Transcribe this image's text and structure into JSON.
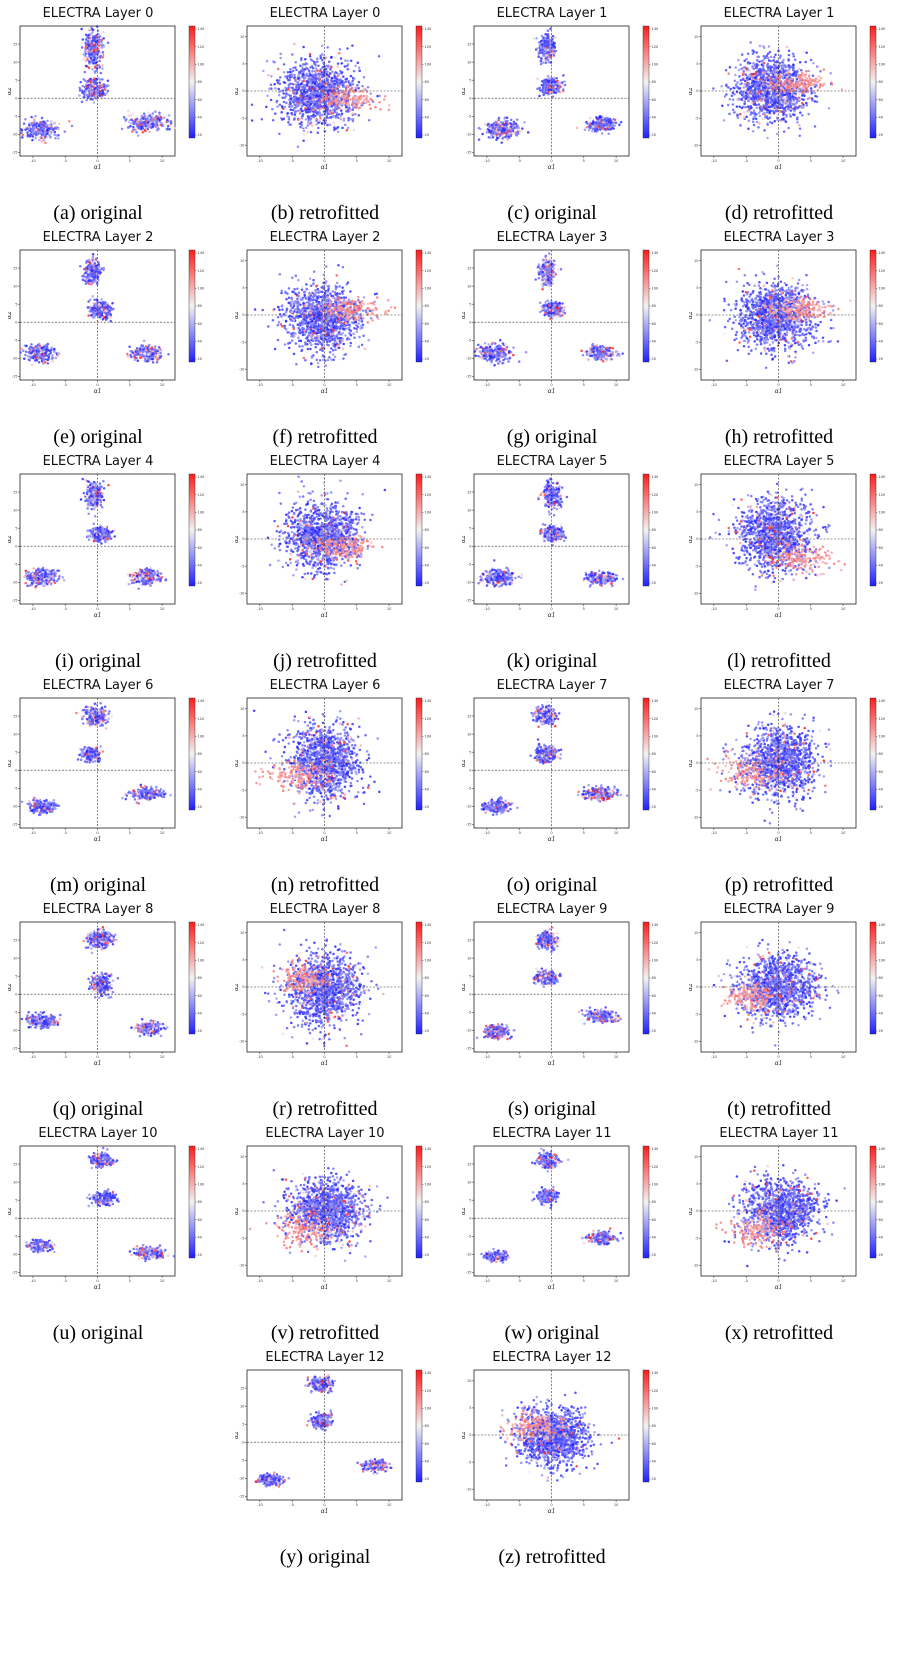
{
  "figure": {
    "cmap": {
      "low": "#1f1fff",
      "mid": "#f2f2f2",
      "high": "#ff1c1c"
    },
    "colorbar_ticks": [
      "140",
      "120",
      "100",
      "80",
      "60",
      "40",
      "20"
    ],
    "xlabel": "α1",
    "ylabel": "α2"
  },
  "chart_data": [
    {
      "id": "a",
      "caption": "(a) original",
      "title": "ELECTRA Layer 0",
      "type": "scatter",
      "variant": "original",
      "xlim": [
        -12,
        12
      ],
      "ylim": [
        -16,
        20
      ],
      "x_ticks": [
        "-10",
        "-5",
        "0",
        "5",
        "10"
      ],
      "y_ticks": [
        "-15",
        "-10",
        "-5",
        "0",
        "5",
        "10",
        "15"
      ],
      "clusters": [
        [
          -0.6,
          13.5,
          0.7,
          2.8,
          0.25
        ],
        [
          -0.6,
          2.4,
          0.9,
          1.4,
          0.22
        ],
        [
          -8.8,
          -8.5,
          1.3,
          1.3,
          0.25
        ],
        [
          7.7,
          -6.7,
          1.6,
          1.2,
          0.3
        ]
      ]
    },
    {
      "id": "b",
      "caption": "(b) retrofitted",
      "title": "ELECTRA Layer 0",
      "type": "scatter",
      "variant": "retrofitted",
      "xlim": [
        -12,
        12
      ],
      "ylim": [
        -12,
        12
      ],
      "x_ticks": [
        "-10",
        "-5",
        "0",
        "5",
        "10"
      ],
      "y_ticks": [
        "-10",
        "-5",
        "0",
        "5",
        "10"
      ],
      "cloud": [
        -1.0,
        -0.5,
        3.0,
        3.0
      ],
      "tail": [
        3.5,
        -1.5,
        2.6,
        1.1
      ]
    },
    {
      "id": "c",
      "caption": "(c) original",
      "title": "ELECTRA Layer 1",
      "type": "scatter",
      "variant": "original",
      "xlim": [
        -12,
        12
      ],
      "ylim": [
        -16,
        20
      ],
      "x_ticks": [
        "-10",
        "-5",
        "0",
        "5",
        "10"
      ],
      "y_ticks": [
        "-15",
        "-10",
        "-5",
        "0",
        "5",
        "10",
        "15"
      ],
      "clusters": [
        [
          -0.7,
          14.0,
          0.6,
          1.8,
          0.25
        ],
        [
          -0.2,
          3.5,
          0.8,
          1.1,
          0.2
        ],
        [
          -7.6,
          -8.5,
          1.4,
          1.3,
          0.25
        ],
        [
          7.8,
          -7.3,
          1.0,
          0.9,
          0.3
        ]
      ]
    },
    {
      "id": "d",
      "caption": "(d) retrofitted",
      "title": "ELECTRA Layer 1",
      "type": "scatter",
      "variant": "retrofitted",
      "xlim": [
        -12,
        12
      ],
      "ylim": [
        -12,
        12
      ],
      "x_ticks": [
        "-10",
        "-5",
        "0",
        "5",
        "10"
      ],
      "y_ticks": [
        "-10",
        "-5",
        "0",
        "5",
        "10"
      ],
      "cloud": [
        -1.0,
        0.5,
        2.8,
        2.8
      ],
      "tail": [
        3.0,
        1.5,
        2.4,
        1.0
      ]
    },
    {
      "id": "e",
      "caption": "(e) original",
      "title": "ELECTRA Layer 2",
      "type": "scatter",
      "variant": "original",
      "xlim": [
        -12,
        12
      ],
      "ylim": [
        -16,
        20
      ],
      "x_ticks": [
        "-10",
        "-5",
        "0",
        "5",
        "10"
      ],
      "y_ticks": [
        "-15",
        "-10",
        "-5",
        "0",
        "5",
        "10",
        "15"
      ],
      "clusters": [
        [
          -0.8,
          14.0,
          0.6,
          1.7,
          0.25
        ],
        [
          0.4,
          3.5,
          0.9,
          1.2,
          0.2
        ],
        [
          -9.0,
          -8.5,
          1.2,
          1.1,
          0.25
        ],
        [
          7.6,
          -8.5,
          1.1,
          1.0,
          0.3
        ]
      ]
    },
    {
      "id": "f",
      "caption": "(f) retrofitted",
      "title": "ELECTRA Layer 2",
      "type": "scatter",
      "variant": "retrofitted",
      "xlim": [
        -12,
        12
      ],
      "ylim": [
        -12,
        12
      ],
      "x_ticks": [
        "-10",
        "-5",
        "0",
        "5",
        "10"
      ],
      "y_ticks": [
        "-10",
        "-5",
        "0",
        "5",
        "10"
      ],
      "cloud": [
        -0.3,
        -0.6,
        2.9,
        2.9
      ],
      "tail": [
        4.0,
        1.0,
        2.6,
        1.0
      ]
    },
    {
      "id": "g",
      "caption": "(g) original",
      "title": "ELECTRA Layer 3",
      "type": "scatter",
      "variant": "original",
      "xlim": [
        -12,
        12
      ],
      "ylim": [
        -16,
        20
      ],
      "x_ticks": [
        "-10",
        "-5",
        "0",
        "5",
        "10"
      ],
      "y_ticks": [
        "-15",
        "-10",
        "-5",
        "0",
        "5",
        "10",
        "15"
      ],
      "clusters": [
        [
          -0.7,
          14.0,
          0.6,
          1.7,
          0.25
        ],
        [
          0.3,
          3.5,
          0.8,
          1.0,
          0.2
        ],
        [
          -8.8,
          -8.5,
          1.2,
          1.1,
          0.25
        ],
        [
          7.5,
          -8.5,
          1.1,
          0.9,
          0.3
        ]
      ]
    },
    {
      "id": "h",
      "caption": "(h) retrofitted",
      "title": "ELECTRA Layer 3",
      "type": "scatter",
      "variant": "retrofitted",
      "xlim": [
        -12,
        12
      ],
      "ylim": [
        -12,
        12
      ],
      "x_ticks": [
        "-10",
        "-5",
        "0",
        "5",
        "10"
      ],
      "y_ticks": [
        "-10",
        "-5",
        "0",
        "5",
        "10"
      ],
      "cloud": [
        -0.5,
        -0.3,
        3.0,
        3.0
      ],
      "tail": [
        3.5,
        1.0,
        2.4,
        1.0
      ]
    },
    {
      "id": "i",
      "caption": "(i) original",
      "title": "ELECTRA Layer 4",
      "type": "scatter",
      "variant": "original",
      "xlim": [
        -12,
        12
      ],
      "ylim": [
        -16,
        20
      ],
      "x_ticks": [
        "-10",
        "-5",
        "0",
        "5",
        "10"
      ],
      "y_ticks": [
        "-15",
        "-10",
        "-5",
        "0",
        "5",
        "10",
        "15"
      ],
      "clusters": [
        [
          -0.5,
          14.0,
          0.7,
          1.8,
          0.25
        ],
        [
          0.5,
          3.5,
          0.8,
          1.0,
          0.2
        ],
        [
          -8.7,
          -8.5,
          1.3,
          1.1,
          0.25
        ],
        [
          7.5,
          -8.5,
          1.1,
          1.0,
          0.3
        ]
      ]
    },
    {
      "id": "j",
      "caption": "(j) retrofitted",
      "title": "ELECTRA Layer 4",
      "type": "scatter",
      "variant": "retrofitted",
      "xlim": [
        -12,
        12
      ],
      "ylim": [
        -12,
        12
      ],
      "x_ticks": [
        "-10",
        "-5",
        "0",
        "5",
        "10"
      ],
      "y_ticks": [
        "-10",
        "-5",
        "0",
        "5",
        "10"
      ],
      "cloud": [
        -0.3,
        0.5,
        2.8,
        3.0
      ],
      "tail": [
        3.5,
        -1.5,
        2.5,
        0.9
      ]
    },
    {
      "id": "k",
      "caption": "(k) original",
      "title": "ELECTRA Layer 5",
      "type": "scatter",
      "variant": "original",
      "xlim": [
        -12,
        12
      ],
      "ylim": [
        -16,
        20
      ],
      "x_ticks": [
        "-10",
        "-5",
        "0",
        "5",
        "10"
      ],
      "y_ticks": [
        "-15",
        "-10",
        "-5",
        "0",
        "5",
        "10",
        "15"
      ],
      "clusters": [
        [
          0.2,
          14.0,
          0.7,
          1.7,
          0.25
        ],
        [
          0.3,
          3.5,
          0.8,
          1.0,
          0.2
        ],
        [
          -8.2,
          -8.5,
          1.2,
          1.0,
          0.25
        ],
        [
          7.5,
          -9.0,
          1.1,
          0.8,
          0.3
        ]
      ]
    },
    {
      "id": "l",
      "caption": "(l) retrofitted",
      "title": "ELECTRA Layer 5",
      "type": "scatter",
      "variant": "retrofitted",
      "xlim": [
        -12,
        12
      ],
      "ylim": [
        -12,
        12
      ],
      "x_ticks": [
        "-10",
        "-5",
        "0",
        "5",
        "10"
      ],
      "y_ticks": [
        "-10",
        "-5",
        "0",
        "5",
        "10"
      ],
      "cloud": [
        -0.5,
        0.5,
        2.8,
        3.2
      ],
      "tail": [
        4.0,
        -3.5,
        2.3,
        1.3
      ]
    },
    {
      "id": "m",
      "caption": "(m) original",
      "title": "ELECTRA Layer 6",
      "type": "scatter",
      "variant": "original",
      "xlim": [
        -12,
        12
      ],
      "ylim": [
        -16,
        20
      ],
      "x_ticks": [
        "-10",
        "-5",
        "0",
        "5",
        "10"
      ],
      "y_ticks": [
        "-15",
        "-10",
        "-5",
        "0",
        "5",
        "10",
        "15"
      ],
      "clusters": [
        [
          -0.3,
          15.0,
          0.9,
          1.3,
          0.25
        ],
        [
          -1.0,
          4.5,
          0.7,
          0.9,
          0.2
        ],
        [
          -8.5,
          -10.0,
          1.1,
          0.9,
          0.25
        ],
        [
          7.4,
          -6.5,
          1.2,
          0.8,
          0.3
        ]
      ]
    },
    {
      "id": "n",
      "caption": "(n) retrofitted",
      "title": "ELECTRA Layer 6",
      "type": "scatter",
      "variant": "retrofitted",
      "xlim": [
        -12,
        12
      ],
      "ylim": [
        -12,
        12
      ],
      "x_ticks": [
        "-10",
        "-5",
        "0",
        "5",
        "10"
      ],
      "y_ticks": [
        "-10",
        "-5",
        "0",
        "5",
        "10"
      ],
      "cloud": [
        0.0,
        0.3,
        2.6,
        3.3
      ],
      "tail": [
        -4.5,
        -2.5,
        2.4,
        1.3
      ]
    },
    {
      "id": "o",
      "caption": "(o) original",
      "title": "ELECTRA Layer 7",
      "type": "scatter",
      "variant": "original",
      "xlim": [
        -12,
        12
      ],
      "ylim": [
        -16,
        20
      ],
      "x_ticks": [
        "-10",
        "-5",
        "0",
        "5",
        "10"
      ],
      "y_ticks": [
        "-15",
        "-10",
        "-5",
        "0",
        "5",
        "10",
        "15"
      ],
      "clusters": [
        [
          -0.9,
          15.0,
          0.8,
          1.2,
          0.25
        ],
        [
          -0.9,
          4.5,
          0.8,
          1.0,
          0.2
        ],
        [
          -8.5,
          -10.0,
          1.0,
          0.9,
          0.25
        ],
        [
          7.5,
          -6.5,
          1.2,
          0.8,
          0.3
        ]
      ]
    },
    {
      "id": "p",
      "caption": "(p) retrofitted",
      "title": "ELECTRA Layer 7",
      "type": "scatter",
      "variant": "retrofitted",
      "xlim": [
        -12,
        12
      ],
      "ylim": [
        -12,
        12
      ],
      "x_ticks": [
        "-10",
        "-5",
        "0",
        "5",
        "10"
      ],
      "y_ticks": [
        "-10",
        "-5",
        "0",
        "5",
        "10"
      ],
      "cloud": [
        0.2,
        0.0,
        2.8,
        3.2
      ],
      "tail": [
        -4.5,
        -2.0,
        2.4,
        1.4
      ]
    },
    {
      "id": "q",
      "caption": "(q) original",
      "title": "ELECTRA Layer 8",
      "type": "scatter",
      "variant": "original",
      "xlim": [
        -12,
        12
      ],
      "ylim": [
        -16,
        20
      ],
      "x_ticks": [
        "-10",
        "-5",
        "0",
        "5",
        "10"
      ],
      "y_ticks": [
        "-15",
        "-10",
        "-5",
        "0",
        "5",
        "10",
        "15"
      ],
      "clusters": [
        [
          0.4,
          15.0,
          0.9,
          1.2,
          0.25
        ],
        [
          0.6,
          2.5,
          0.9,
          1.5,
          0.2
        ],
        [
          -8.5,
          -7.5,
          1.1,
          0.9,
          0.25
        ],
        [
          8.0,
          -9.5,
          1.0,
          0.8,
          0.3
        ]
      ]
    },
    {
      "id": "r",
      "caption": "(r) retrofitted",
      "title": "ELECTRA Layer 8",
      "type": "scatter",
      "variant": "retrofitted",
      "xlim": [
        -12,
        12
      ],
      "ylim": [
        -12,
        12
      ],
      "x_ticks": [
        "-10",
        "-5",
        "0",
        "5",
        "10"
      ],
      "y_ticks": [
        "-10",
        "-5",
        "0",
        "5",
        "10"
      ],
      "cloud": [
        0.0,
        -0.5,
        2.8,
        3.2
      ],
      "tail": [
        -3.5,
        1.5,
        1.8,
        1.4
      ]
    },
    {
      "id": "s",
      "caption": "(s) original",
      "title": "ELECTRA Layer 9",
      "type": "scatter",
      "variant": "original",
      "xlim": [
        -12,
        12
      ],
      "ylim": [
        -16,
        20
      ],
      "x_ticks": [
        "-10",
        "-5",
        "0",
        "5",
        "10"
      ],
      "y_ticks": [
        "-15",
        "-10",
        "-5",
        "0",
        "5",
        "10",
        "15"
      ],
      "clusters": [
        [
          -0.6,
          15.0,
          0.8,
          1.1,
          0.25
        ],
        [
          -0.9,
          4.5,
          0.8,
          0.9,
          0.2
        ],
        [
          -8.5,
          -10.5,
          0.9,
          0.9,
          0.25
        ],
        [
          7.8,
          -6.0,
          1.1,
          0.8,
          0.3
        ]
      ]
    },
    {
      "id": "t",
      "caption": "(t) retrofitted",
      "title": "ELECTRA Layer 9",
      "type": "scatter",
      "variant": "retrofitted",
      "xlim": [
        -12,
        12
      ],
      "ylim": [
        -12,
        12
      ],
      "x_ticks": [
        "-10",
        "-5",
        "0",
        "5",
        "10"
      ],
      "y_ticks": [
        "-10",
        "-5",
        "0",
        "5",
        "10"
      ],
      "cloud": [
        0.0,
        0.0,
        3.0,
        2.8
      ],
      "tail": [
        -4.0,
        -1.5,
        2.2,
        1.3
      ]
    },
    {
      "id": "u",
      "caption": "(u) original",
      "title": "ELECTRA Layer 10",
      "type": "scatter",
      "variant": "original",
      "xlim": [
        -12,
        12
      ],
      "ylim": [
        -16,
        20
      ],
      "x_ticks": [
        "-10",
        "-5",
        "0",
        "5",
        "10"
      ],
      "y_ticks": [
        "-15",
        "-10",
        "-5",
        "0",
        "5",
        "10",
        "15"
      ],
      "clusters": [
        [
          0.6,
          16.0,
          0.8,
          0.9,
          0.25
        ],
        [
          1.0,
          5.5,
          0.8,
          0.9,
          0.2
        ],
        [
          -9.0,
          -7.5,
          0.9,
          0.8,
          0.25
        ],
        [
          8.0,
          -9.5,
          1.0,
          0.8,
          0.3
        ]
      ]
    },
    {
      "id": "v",
      "caption": "(v) retrofitted",
      "title": "ELECTRA Layer 10",
      "type": "scatter",
      "variant": "retrofitted",
      "xlim": [
        -12,
        12
      ],
      "ylim": [
        -12,
        12
      ],
      "x_ticks": [
        "-10",
        "-5",
        "0",
        "5",
        "10"
      ],
      "y_ticks": [
        "-10",
        "-5",
        "0",
        "5",
        "10"
      ],
      "cloud": [
        0.3,
        0.0,
        2.9,
        2.9
      ],
      "tail": [
        -3.5,
        -3.5,
        2.2,
        1.6
      ]
    },
    {
      "id": "w",
      "caption": "(w) original",
      "title": "ELECTRA Layer 11",
      "type": "scatter",
      "variant": "original",
      "xlim": [
        -12,
        12
      ],
      "ylim": [
        -16,
        20
      ],
      "x_ticks": [
        "-10",
        "-5",
        "0",
        "5",
        "10"
      ],
      "y_ticks": [
        "-15",
        "-10",
        "-5",
        "0",
        "5",
        "10",
        "15"
      ],
      "clusters": [
        [
          -0.6,
          16.0,
          0.8,
          0.9,
          0.25
        ],
        [
          -0.8,
          6.0,
          0.7,
          0.9,
          0.2
        ],
        [
          -8.5,
          -10.5,
          0.9,
          0.7,
          0.25
        ],
        [
          7.8,
          -5.5,
          1.0,
          0.8,
          0.3
        ]
      ]
    },
    {
      "id": "x",
      "caption": "(x) retrofitted",
      "title": "ELECTRA Layer 11",
      "type": "scatter",
      "variant": "retrofitted",
      "xlim": [
        -12,
        12
      ],
      "ylim": [
        -12,
        12
      ],
      "x_ticks": [
        "-10",
        "-5",
        "0",
        "5",
        "10"
      ],
      "y_ticks": [
        "-10",
        "-5",
        "0",
        "5",
        "10"
      ],
      "cloud": [
        0.3,
        0.0,
        2.9,
        2.9
      ],
      "tail": [
        -3.5,
        -3.5,
        2.2,
        1.6
      ]
    },
    {
      "id": "y",
      "caption": "(y) original",
      "title": "ELECTRA Layer 12",
      "type": "scatter",
      "variant": "original",
      "xlim": [
        -12,
        12
      ],
      "ylim": [
        -16,
        20
      ],
      "x_ticks": [
        "-10",
        "-5",
        "0",
        "5",
        "10"
      ],
      "y_ticks": [
        "-15",
        "-10",
        "-5",
        "0",
        "5",
        "10",
        "15"
      ],
      "clusters": [
        [
          -0.6,
          16.0,
          0.8,
          0.9,
          0.25
        ],
        [
          -0.5,
          6.0,
          0.7,
          0.9,
          0.2
        ],
        [
          -8.5,
          -10.5,
          0.9,
          0.7,
          0.25
        ],
        [
          8.0,
          -6.5,
          1.0,
          0.7,
          0.3
        ]
      ]
    },
    {
      "id": "z",
      "caption": "(z) retrofitted",
      "title": "ELECTRA Layer 12",
      "type": "scatter",
      "variant": "retrofitted",
      "xlim": [
        -12,
        12
      ],
      "ylim": [
        -12,
        12
      ],
      "x_ticks": [
        "-10",
        "-5",
        "0",
        "5",
        "10"
      ],
      "y_ticks": [
        "-10",
        "-5",
        "0",
        "5",
        "10"
      ],
      "cloud": [
        0.3,
        -0.3,
        2.6,
        2.6
      ],
      "tail": [
        -3.0,
        1.5,
        2.2,
        1.3
      ]
    }
  ]
}
